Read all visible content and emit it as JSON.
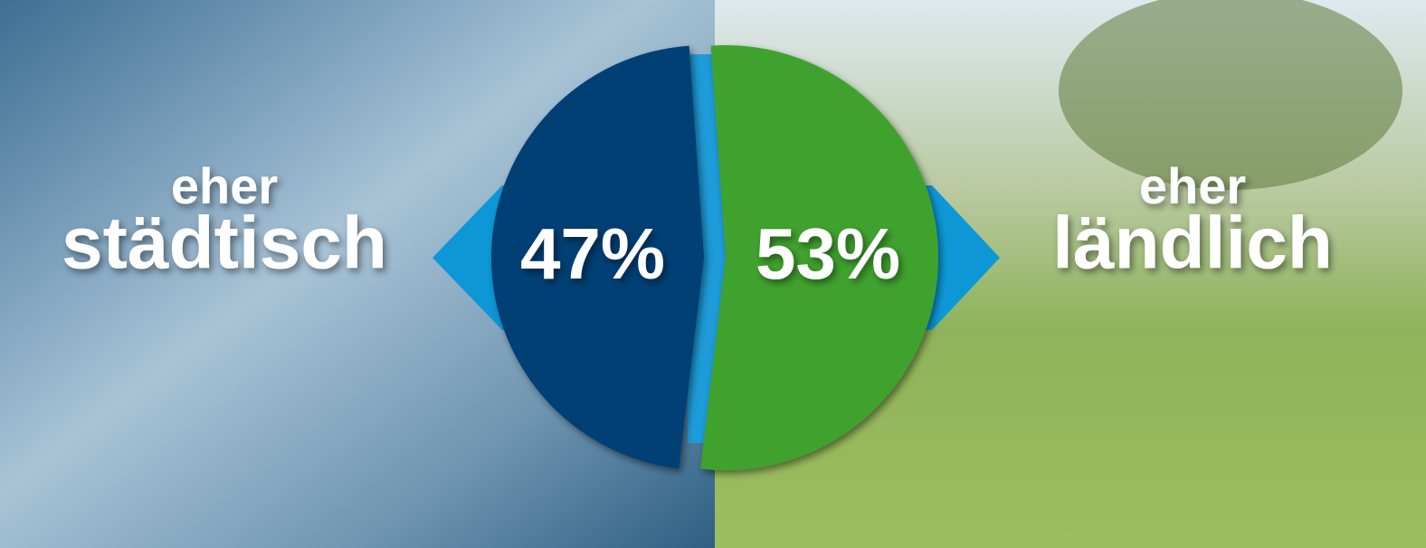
{
  "chart_data": {
    "type": "pie",
    "categories": [
      {
        "qualifier": "eher",
        "label": "städtisch"
      },
      {
        "qualifier": "eher",
        "label": "ländlich"
      }
    ],
    "values": [
      47,
      53
    ],
    "value_labels": [
      "47%",
      "53%"
    ],
    "colors": [
      "#003f74",
      "#3fa22f"
    ]
  }
}
